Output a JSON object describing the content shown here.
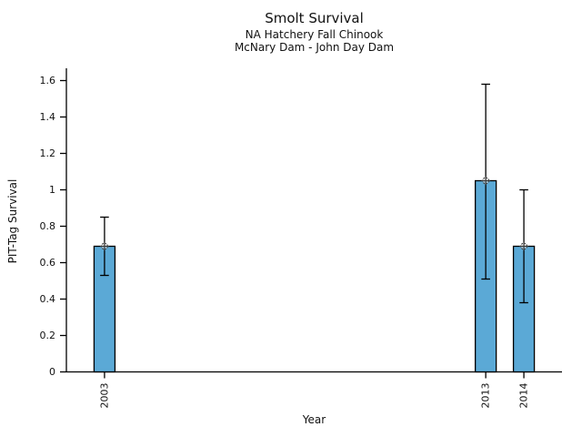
{
  "chart_data": {
    "type": "bar",
    "title": "Smolt Survival",
    "subtitle1": "NA Hatchery Fall Chinook",
    "subtitle2": "McNary Dam - John Day Dam",
    "xlabel": "Year",
    "ylabel": "PIT-Tag Survival",
    "categories": [
      "2003",
      "2013",
      "2014"
    ],
    "x_values": [
      2003,
      2013,
      2014
    ],
    "values": [
      0.69,
      1.05,
      0.69
    ],
    "error_low": [
      0.53,
      0.51,
      0.38
    ],
    "error_high": [
      0.85,
      1.58,
      1.0
    ],
    "xlim": [
      2002,
      2015
    ],
    "ylim": [
      0,
      1.6
    ],
    "ytick_values": [
      0,
      0.2,
      0.4,
      0.6,
      0.8,
      1,
      1.2,
      1.4,
      1.6
    ],
    "ytick_labels": [
      "0",
      "0.2",
      "0.4",
      "0.6",
      "0.8",
      "1",
      "1.2",
      "1.4",
      "1.6"
    ],
    "x_tick_rotation": 90,
    "grid": false,
    "legend": "none",
    "marker": "circled-plus",
    "bar_color": "#5BA9D6",
    "bar_edge_color": "#000000",
    "error_bar_color": "#000000",
    "marker_edge_color": "#3a3a3a",
    "marker_fill_color": "#d8d8d8",
    "axis_color": "#000000",
    "text_color": "#111111"
  }
}
